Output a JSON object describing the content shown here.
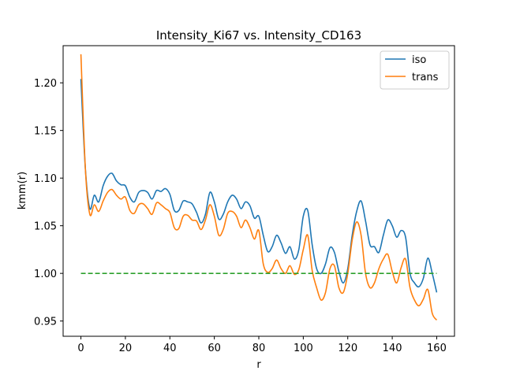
{
  "chart_data": {
    "type": "line",
    "title": "Intensity_Ki67 vs. Intensity_CD163",
    "xlabel": "r",
    "ylabel": "kmm(r)",
    "xlim": [
      -8,
      168
    ],
    "ylim": [
      0.934,
      1.239
    ],
    "xticks": [
      0,
      20,
      40,
      60,
      80,
      100,
      120,
      140,
      160
    ],
    "yticks": [
      0.95,
      1.0,
      1.05,
      1.1,
      1.15,
      1.2
    ],
    "ytick_labels": [
      "0.95",
      "1.00",
      "1.05",
      "1.10",
      "1.15",
      "1.20"
    ],
    "grid": false,
    "legend_position": "top-right",
    "series": [
      {
        "name": "iso",
        "color": "#1f77b4",
        "style": "solid",
        "x": [
          0,
          2,
          4,
          6,
          8,
          10,
          12,
          14,
          16,
          18,
          20,
          22,
          24,
          26,
          28,
          30,
          32,
          34,
          36,
          38,
          40,
          42,
          44,
          46,
          48,
          50,
          52,
          54,
          56,
          58,
          60,
          62,
          64,
          66,
          68,
          70,
          72,
          74,
          76,
          78,
          80,
          82,
          84,
          86,
          88,
          90,
          92,
          94,
          96,
          98,
          100,
          102,
          104,
          106,
          108,
          110,
          112,
          114,
          116,
          118,
          120,
          122,
          124,
          126,
          128,
          130,
          132,
          134,
          136,
          138,
          140,
          142,
          144,
          146,
          148,
          150,
          152,
          154,
          156,
          158,
          160
        ],
        "y": [
          1.204,
          1.11,
          1.068,
          1.082,
          1.075,
          1.092,
          1.102,
          1.105,
          1.097,
          1.093,
          1.092,
          1.08,
          1.075,
          1.085,
          1.087,
          1.085,
          1.078,
          1.087,
          1.086,
          1.089,
          1.083,
          1.066,
          1.066,
          1.076,
          1.075,
          1.073,
          1.064,
          1.053,
          1.062,
          1.085,
          1.075,
          1.057,
          1.062,
          1.075,
          1.082,
          1.078,
          1.068,
          1.075,
          1.071,
          1.058,
          1.06,
          1.04,
          1.023,
          1.028,
          1.04,
          1.032,
          1.021,
          1.028,
          1.015,
          1.025,
          1.06,
          1.066,
          1.03,
          1.005,
          1.0,
          1.01,
          1.027,
          1.022,
          1.002,
          0.99,
          1.005,
          1.04,
          1.065,
          1.076,
          1.055,
          1.03,
          1.028,
          1.022,
          1.04,
          1.056,
          1.05,
          1.038,
          1.045,
          1.038,
          1.0,
          0.99,
          0.986,
          0.995,
          1.016,
          1.0,
          0.98
        ]
      },
      {
        "name": "trans",
        "color": "#ff7f0e",
        "style": "solid",
        "x": [
          0,
          2,
          4,
          6,
          8,
          10,
          12,
          14,
          16,
          18,
          20,
          22,
          24,
          26,
          28,
          30,
          32,
          34,
          36,
          38,
          40,
          42,
          44,
          46,
          48,
          50,
          52,
          54,
          56,
          58,
          60,
          62,
          64,
          66,
          68,
          70,
          72,
          74,
          76,
          78,
          80,
          82,
          84,
          86,
          88,
          90,
          92,
          94,
          96,
          98,
          100,
          102,
          104,
          106,
          108,
          110,
          112,
          114,
          116,
          118,
          120,
          122,
          124,
          126,
          128,
          130,
          132,
          134,
          136,
          138,
          140,
          142,
          144,
          146,
          148,
          150,
          152,
          154,
          156,
          158,
          160
        ],
        "y": [
          1.23,
          1.11,
          1.062,
          1.072,
          1.065,
          1.076,
          1.085,
          1.088,
          1.082,
          1.078,
          1.08,
          1.066,
          1.063,
          1.072,
          1.073,
          1.068,
          1.062,
          1.074,
          1.072,
          1.068,
          1.064,
          1.048,
          1.047,
          1.06,
          1.061,
          1.056,
          1.055,
          1.046,
          1.056,
          1.072,
          1.06,
          1.04,
          1.046,
          1.063,
          1.065,
          1.06,
          1.048,
          1.056,
          1.048,
          1.036,
          1.045,
          1.01,
          1.001,
          1.005,
          1.014,
          1.005,
          1.0,
          1.008,
          0.999,
          1.004,
          1.025,
          1.04,
          1.003,
          0.985,
          0.972,
          0.98,
          1.005,
          1.008,
          0.985,
          0.98,
          1.0,
          1.035,
          1.054,
          1.04,
          1.0,
          0.985,
          0.99,
          1.005,
          1.015,
          1.02,
          1.002,
          0.99,
          1.006,
          1.015,
          0.985,
          0.972,
          0.966,
          0.973,
          0.983,
          0.958,
          0.951
        ]
      },
      {
        "name": "",
        "color": "#2ca02c",
        "style": "dashed",
        "x": [
          0,
          160
        ],
        "y": [
          1.0,
          1.0
        ]
      }
    ],
    "legend": [
      {
        "label": "iso",
        "color": "#1f77b4"
      },
      {
        "label": "trans",
        "color": "#ff7f0e"
      }
    ]
  }
}
